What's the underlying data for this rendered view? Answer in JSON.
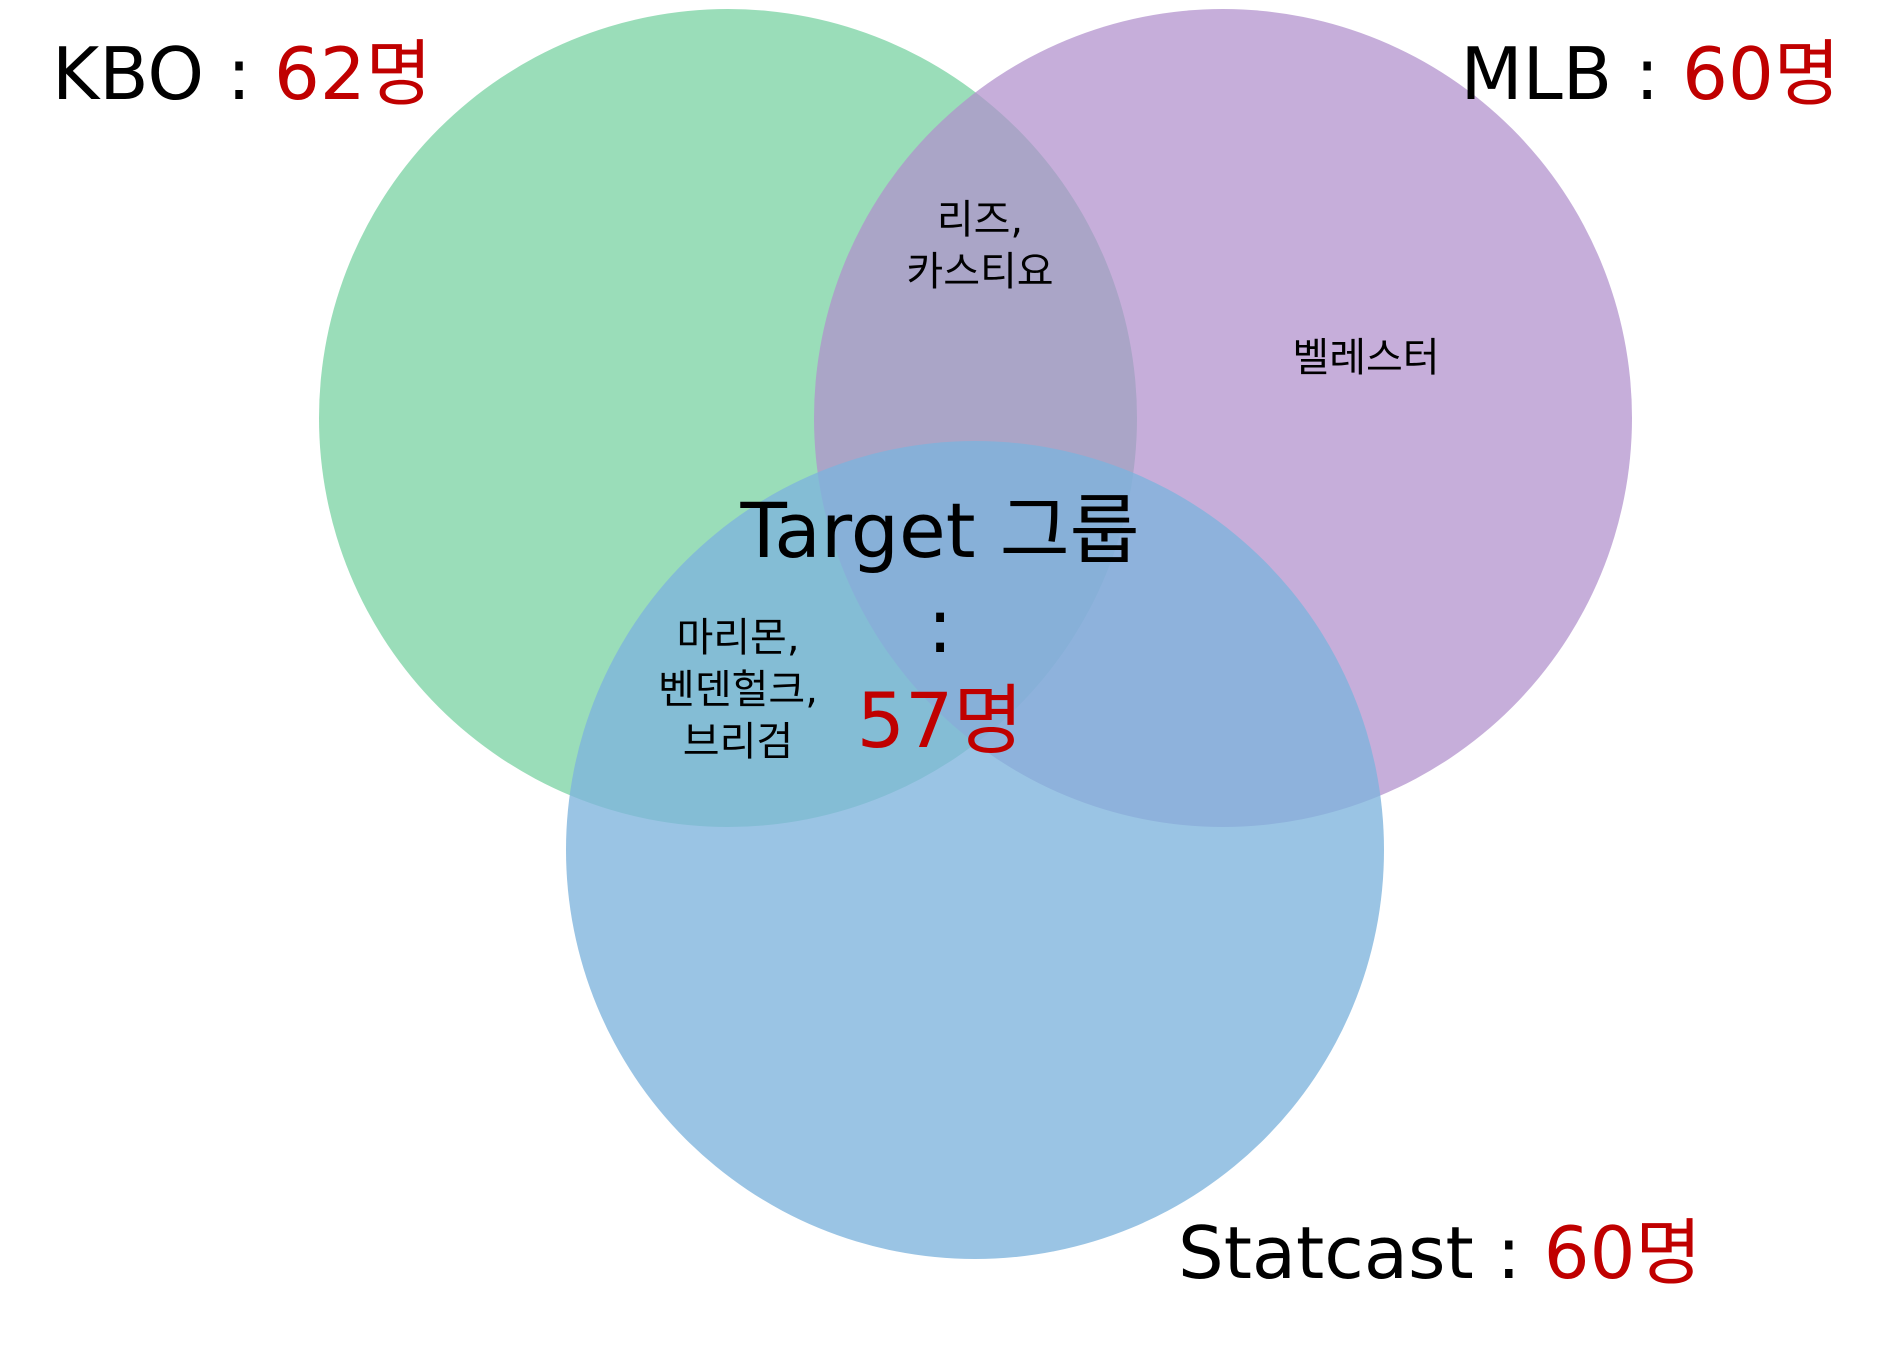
{
  "sets": {
    "kbo": {
      "name": "KBO",
      "sep": " : ",
      "count": "62명",
      "color": "#7dd3a5"
    },
    "mlb": {
      "name": "MLB",
      "sep": " : ",
      "count": "60명",
      "color": "#b08fcc"
    },
    "statcast": {
      "name": "Statcast",
      "sep": " : ",
      "count": "60명",
      "color": "#7eb4dd"
    }
  },
  "regions": {
    "kbo_mlb": [
      "리즈,",
      "카스티요"
    ],
    "mlb_only": [
      "벨레스터"
    ],
    "kbo_statcast": [
      "마리몬,",
      "벤덴헐크,",
      "브리검"
    ]
  },
  "target": {
    "label": "Target 그룹",
    "sep": " : ",
    "count": "57명"
  },
  "colors": {
    "count_highlight": "#c00000",
    "text": "#000000"
  }
}
